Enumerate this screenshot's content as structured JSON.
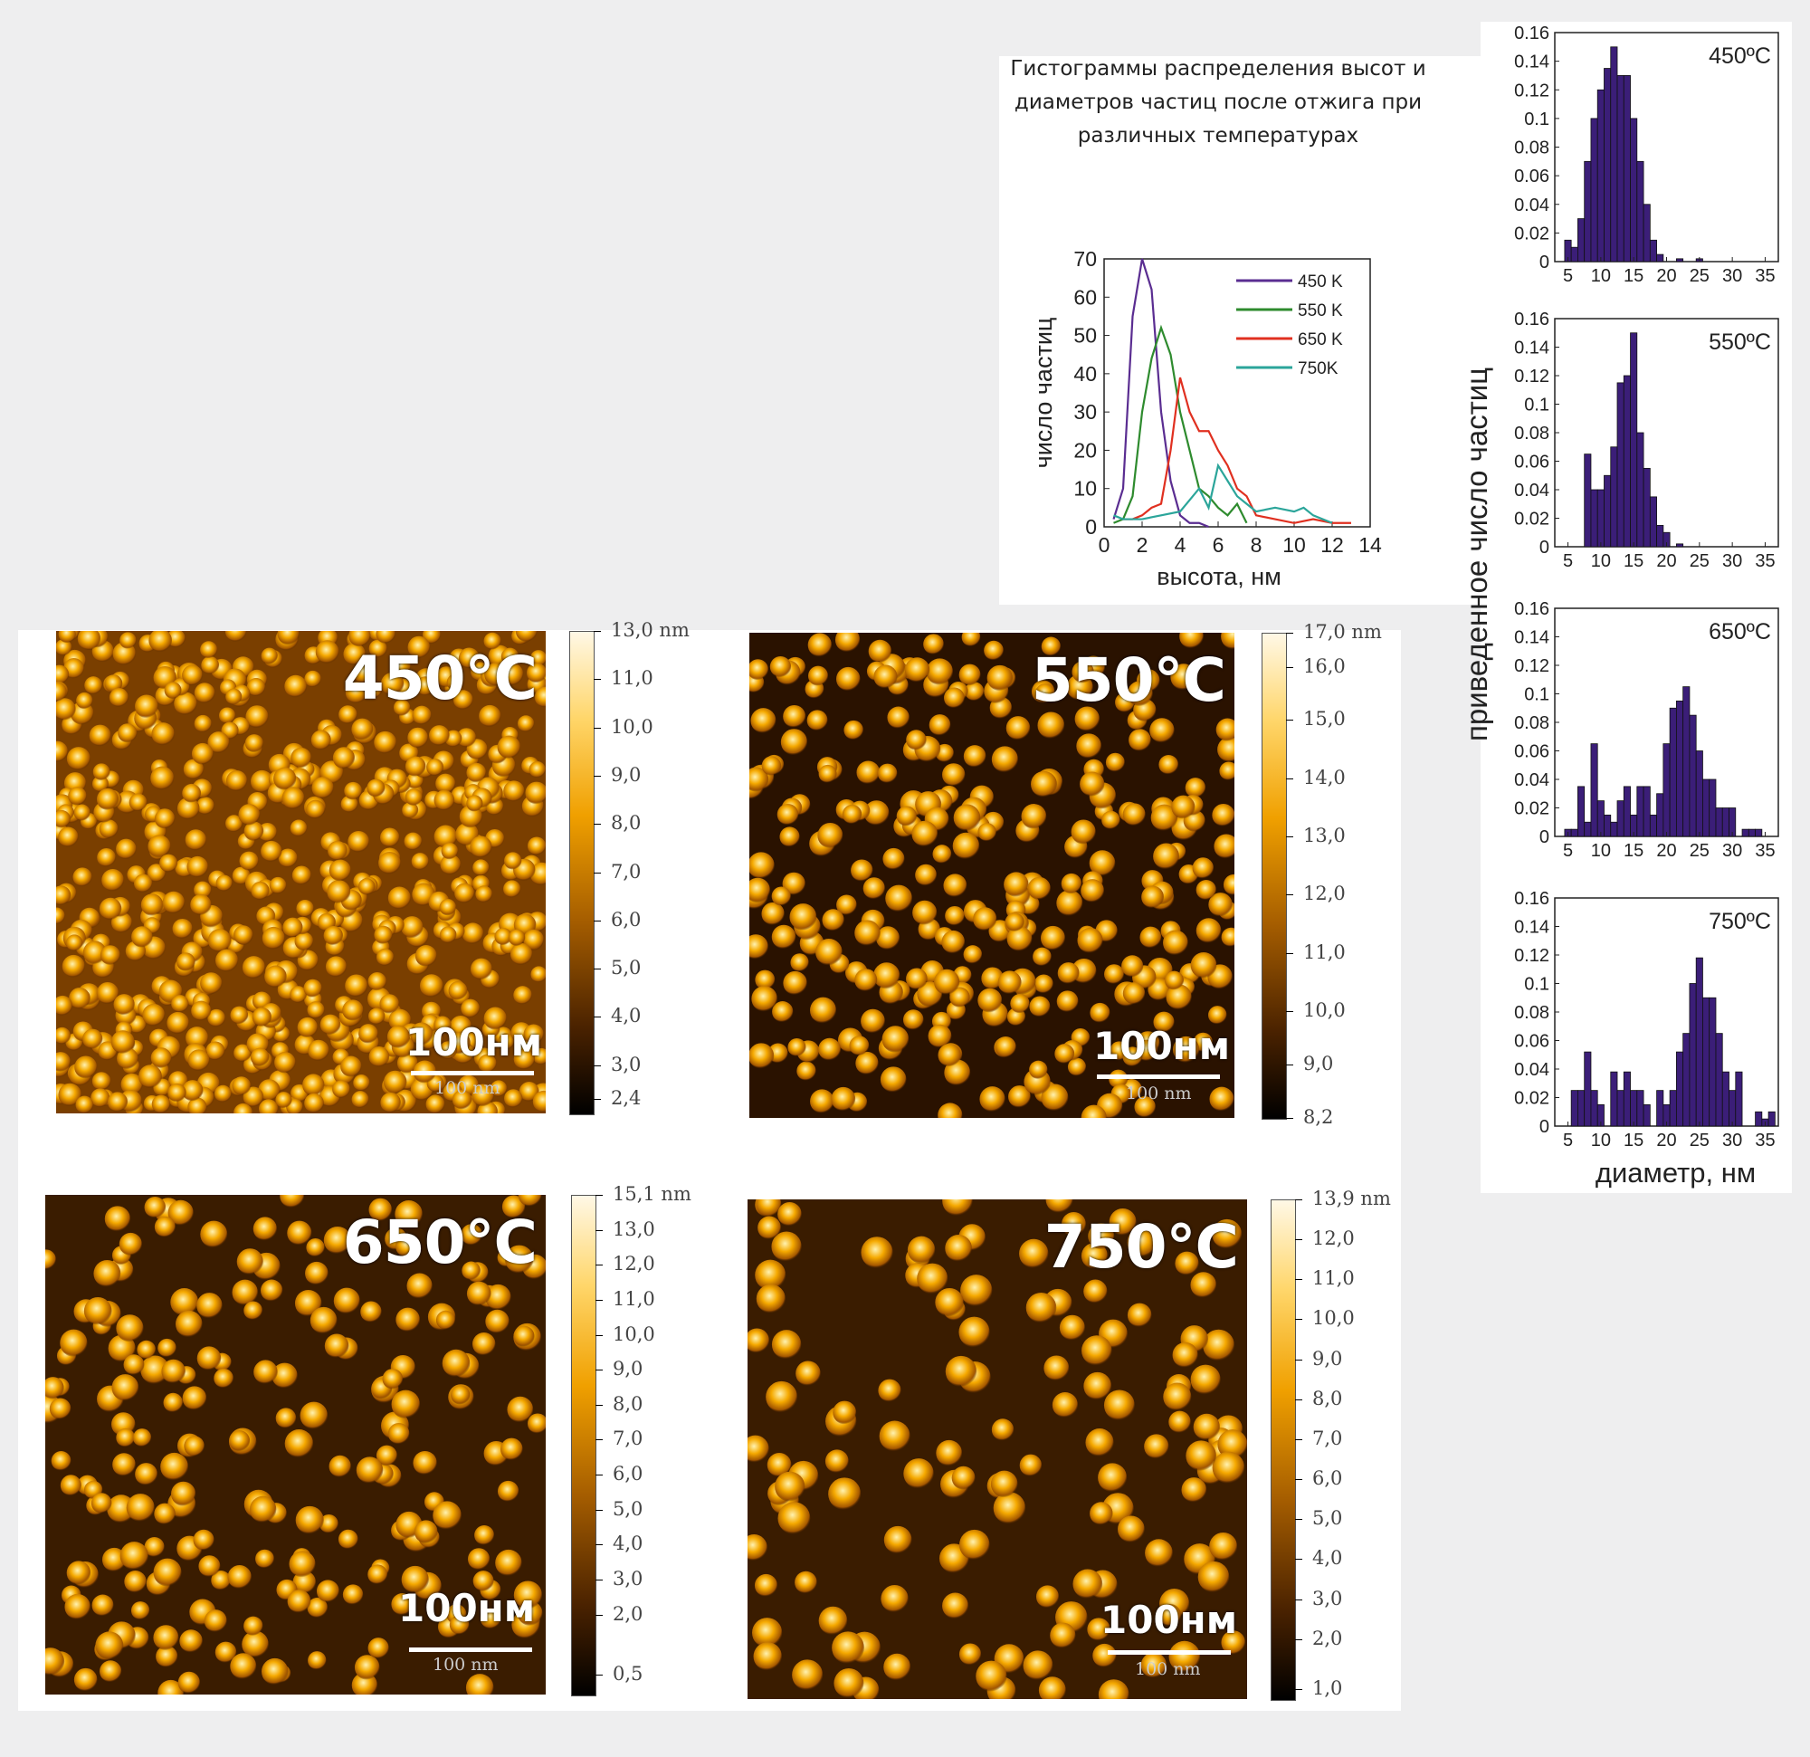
{
  "figure_title": "Гистограммы распределения высот и диаметров частиц после отжига при различных температурах",
  "afm_images": [
    {
      "label": "450°C",
      "scale_label": "100нм",
      "scale_small": "100 nm",
      "colorbar": [
        "13,0 nm",
        "11,0",
        "10,0",
        "9,0",
        "8,0",
        "7,0",
        "6,0",
        "5,0",
        "4,0",
        "3,0",
        "2,4"
      ]
    },
    {
      "label": "550°C",
      "scale_label": "100нм",
      "scale_small": "100 nm",
      "colorbar": [
        "17,0 nm",
        "16,0",
        "15,0",
        "14,0",
        "13,0",
        "12,0",
        "11,0",
        "10,0",
        "9,0",
        "8,2"
      ]
    },
    {
      "label": "650°C",
      "scale_label": "100нм",
      "scale_small": "100 nm",
      "colorbar": [
        "15,1 nm",
        "13,0",
        "12,0",
        "11,0",
        "10,0",
        "9,0",
        "8,0",
        "7,0",
        "6,0",
        "5,0",
        "4,0",
        "3,0",
        "2,0",
        "0,5"
      ]
    },
    {
      "label": "750°C",
      "scale_label": "100нм",
      "scale_small": "100 nm",
      "colorbar": [
        "13,9 nm",
        "12,0",
        "11,0",
        "10,0",
        "9,0",
        "8,0",
        "7,0",
        "6,0",
        "5,0",
        "4,0",
        "3,0",
        "2,0",
        "1,0"
      ]
    }
  ],
  "chart_data": [
    {
      "type": "line",
      "xlabel": "высота, нм",
      "ylabel": "число частиц",
      "xlim": [
        0,
        14
      ],
      "ylim": [
        0,
        70
      ],
      "xticks": [
        0,
        2,
        4,
        6,
        8,
        10,
        12,
        14
      ],
      "yticks": [
        0,
        10,
        20,
        30,
        40,
        50,
        60,
        70
      ],
      "legend_position": "top-right",
      "series": [
        {
          "name": "450 K",
          "color": "#5a2d91",
          "x": [
            0.5,
            1,
            1.5,
            2,
            2.5,
            3,
            3.5,
            4,
            4.5,
            5,
            5.5
          ],
          "y": [
            2,
            10,
            55,
            70,
            62,
            30,
            12,
            3,
            1,
            1,
            0
          ]
        },
        {
          "name": "550 K",
          "color": "#2e8b2e",
          "x": [
            0.5,
            1,
            1.5,
            2,
            2.5,
            3,
            3.5,
            4,
            4.5,
            5,
            5.5,
            6,
            6.5,
            7,
            7.5
          ],
          "y": [
            1,
            2,
            8,
            30,
            44,
            52,
            45,
            30,
            20,
            10,
            8,
            5,
            3,
            6,
            1
          ]
        },
        {
          "name": "650 K",
          "color": "#e03020",
          "x": [
            1,
            1.5,
            2,
            2.5,
            3,
            3.5,
            4,
            4.5,
            5,
            5.5,
            6,
            6.5,
            7,
            7.5,
            8,
            9,
            10,
            11,
            12,
            13
          ],
          "y": [
            2,
            2,
            3,
            5,
            6,
            20,
            39,
            30,
            25,
            25,
            20,
            16,
            10,
            8,
            3,
            2,
            1,
            2,
            1,
            1
          ]
        },
        {
          "name": "750K",
          "color": "#2ba59a",
          "x": [
            0.5,
            1,
            2,
            3,
            4,
            4.5,
            5,
            5.5,
            6,
            6.5,
            7,
            7.5,
            8,
            9,
            10,
            10.5,
            11,
            12
          ],
          "y": [
            3,
            2,
            2,
            3,
            4,
            7,
            10,
            5,
            16,
            12,
            8,
            6,
            4,
            5,
            4,
            5,
            3,
            1
          ]
        }
      ]
    },
    {
      "type": "bar",
      "title": "450ºC",
      "ylim": [
        0,
        0.16
      ],
      "yticks": [
        "0",
        "0.02",
        "0.04",
        "0.06",
        "0.08",
        "0.1",
        "0.12",
        "0.14",
        "0.16"
      ],
      "xticks": [
        5,
        10,
        15,
        20,
        25,
        30,
        35
      ],
      "x": [
        5,
        6,
        7,
        8,
        9,
        10,
        11,
        12,
        13,
        14,
        15,
        16,
        17,
        18,
        19,
        20,
        21,
        22,
        23,
        24,
        25
      ],
      "values": [
        0.015,
        0.01,
        0.03,
        0.07,
        0.1,
        0.12,
        0.135,
        0.15,
        0.13,
        0.13,
        0.1,
        0.07,
        0.04,
        0.015,
        0.005,
        0,
        0,
        0.002,
        0,
        0,
        0.002
      ]
    },
    {
      "type": "bar",
      "title": "550ºC",
      "ylim": [
        0,
        0.16
      ],
      "yticks": [
        "0",
        "0.02",
        "0.04",
        "0.06",
        "0.08",
        "0.1",
        "0.12",
        "0.14",
        "0.16"
      ],
      "xticks": [
        5,
        10,
        15,
        20,
        25,
        30,
        35
      ],
      "x": [
        5,
        6,
        7,
        8,
        9,
        10,
        11,
        12,
        13,
        14,
        15,
        16,
        17,
        18,
        19,
        20,
        21,
        22
      ],
      "values": [
        0,
        0,
        0,
        0.065,
        0.04,
        0.04,
        0.05,
        0.07,
        0.115,
        0.12,
        0.15,
        0.08,
        0.055,
        0.035,
        0.015,
        0.01,
        0,
        0.002
      ]
    },
    {
      "type": "bar",
      "title": "650ºC",
      "ylim": [
        0,
        0.16
      ],
      "yticks": [
        "0",
        "0.02",
        "0.04",
        "0.06",
        "0.08",
        "0.1",
        "0.12",
        "0.14",
        "0.16"
      ],
      "xticks": [
        5,
        10,
        15,
        20,
        25,
        30,
        35
      ],
      "x": [
        5,
        6,
        7,
        8,
        9,
        10,
        11,
        12,
        13,
        14,
        15,
        16,
        17,
        18,
        19,
        20,
        21,
        22,
        23,
        24,
        25,
        26,
        27,
        28,
        29,
        30,
        31,
        32,
        33,
        34,
        35
      ],
      "values": [
        0.005,
        0.005,
        0.035,
        0.01,
        0.065,
        0.025,
        0.015,
        0.01,
        0.025,
        0.035,
        0.015,
        0.035,
        0.035,
        0.015,
        0.03,
        0.065,
        0.09,
        0.095,
        0.105,
        0.085,
        0.06,
        0.04,
        0.04,
        0.02,
        0.02,
        0.02,
        0,
        0.005,
        0.005,
        0.005,
        0
      ]
    },
    {
      "type": "bar",
      "title": "750ºC",
      "ylim": [
        0,
        0.16
      ],
      "xlabel": "диаметр, нм",
      "yticks": [
        "0",
        "0.02",
        "0.04",
        "0.06",
        "0.08",
        "0.1",
        "0.12",
        "0.14",
        "0.16"
      ],
      "xticks": [
        5,
        10,
        15,
        20,
        25,
        30,
        35
      ],
      "x": [
        5,
        6,
        7,
        8,
        9,
        10,
        11,
        12,
        13,
        14,
        15,
        16,
        17,
        18,
        19,
        20,
        21,
        22,
        23,
        24,
        25,
        26,
        27,
        28,
        29,
        30,
        31,
        32,
        33,
        34,
        35,
        36
      ],
      "values": [
        0,
        0.025,
        0.025,
        0.052,
        0.025,
        0.015,
        0,
        0.038,
        0.025,
        0.038,
        0.025,
        0.025,
        0.015,
        0,
        0.025,
        0.015,
        0.025,
        0.052,
        0.065,
        0.1,
        0.118,
        0.09,
        0.09,
        0.065,
        0.038,
        0.025,
        0.038,
        0,
        0,
        0.01,
        0.005,
        0.01
      ]
    }
  ],
  "hist_common_ylabel": "приведенное число частиц"
}
